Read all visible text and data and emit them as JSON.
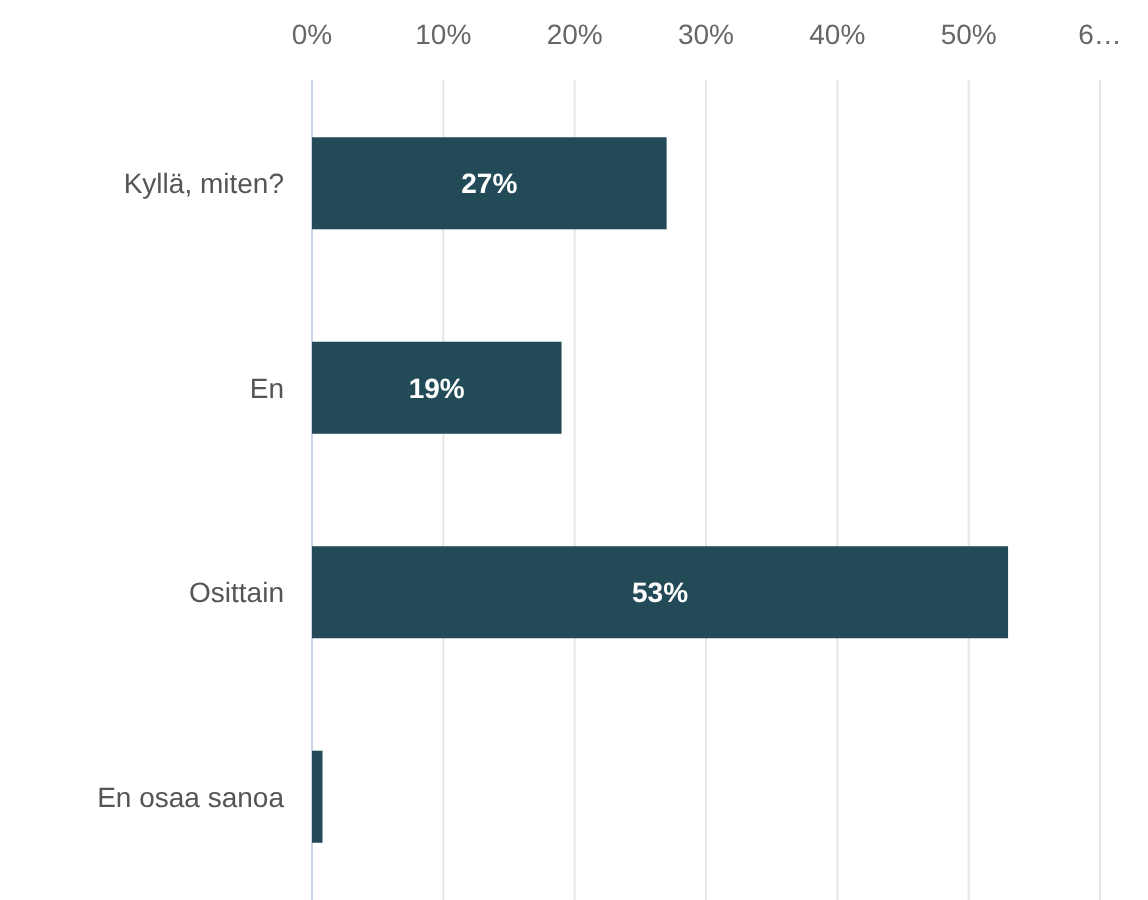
{
  "chart_data": {
    "type": "bar",
    "orientation": "horizontal",
    "categories": [
      "Kyllä, miten?",
      "En",
      "Osittain",
      "En osaa sanoa"
    ],
    "values": [
      27,
      19,
      53,
      0.8
    ],
    "value_labels": [
      "27%",
      "19%",
      "53%",
      null
    ],
    "color": "#234a57",
    "xlim": [
      0,
      60
    ],
    "xticks": [
      {
        "value": 0,
        "label": "0%"
      },
      {
        "value": 10,
        "label": "10%"
      },
      {
        "value": 20,
        "label": "20%"
      },
      {
        "value": 30,
        "label": "30%"
      },
      {
        "value": 40,
        "label": "40%"
      },
      {
        "value": 50,
        "label": "50%"
      },
      {
        "value": 60,
        "label": "6…"
      }
    ],
    "grid": "x"
  }
}
